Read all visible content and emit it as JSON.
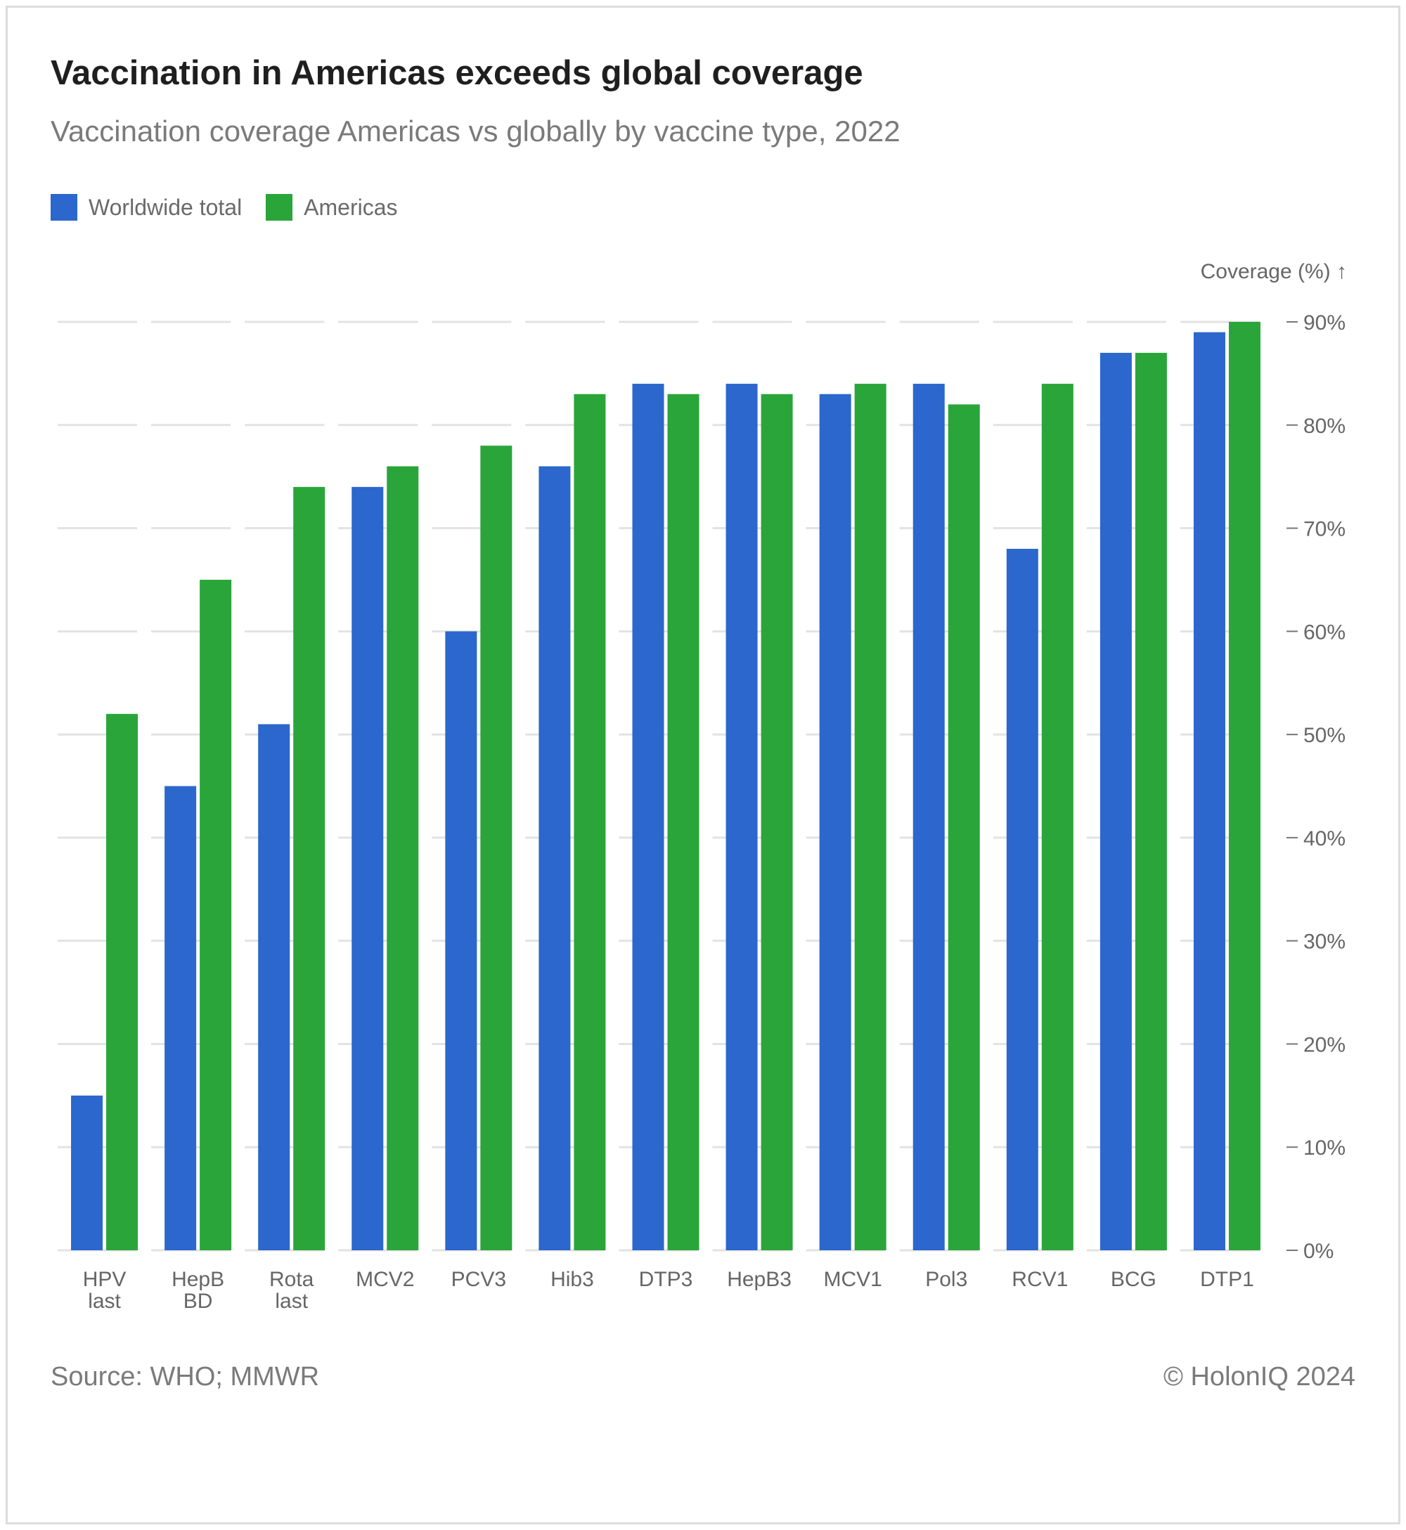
{
  "header": {
    "title": "Vaccination in Americas exceeds global coverage",
    "subtitle": "Vaccination coverage Americas vs globally by vaccine type, 2022"
  },
  "legend": [
    {
      "label": "Worldwide total",
      "color": "#2b67cc"
    },
    {
      "label": "Americas",
      "color": "#2aa53a"
    }
  ],
  "footer": {
    "source": "Source: WHO; MMWR",
    "copyright": "© HolonIQ 2024"
  },
  "chart_data": {
    "type": "bar",
    "title": "Vaccination in Americas exceeds global coverage",
    "subtitle": "Vaccination coverage Americas vs globally by vaccine type, 2022",
    "ylabel": "Coverage (%) ↑",
    "xlabel": "",
    "ylim": [
      0,
      90
    ],
    "yticks": [
      "0%",
      "10%",
      "20%",
      "30%",
      "40%",
      "50%",
      "60%",
      "70%",
      "80%",
      "90%"
    ],
    "y_axis_position": "right",
    "grid": true,
    "legend_position": "top-left",
    "categories": [
      [
        "HPV",
        "last"
      ],
      [
        "HepB",
        "BD"
      ],
      [
        "Rota",
        "last"
      ],
      [
        "MCV2"
      ],
      [
        "PCV3"
      ],
      [
        "Hib3"
      ],
      [
        "DTP3"
      ],
      [
        "HepB3"
      ],
      [
        "MCV1"
      ],
      [
        "Pol3"
      ],
      [
        "RCV1"
      ],
      [
        "BCG"
      ],
      [
        "DTP1"
      ]
    ],
    "series": [
      {
        "name": "Worldwide total",
        "color": "#2b67cc",
        "values": [
          15,
          45,
          51,
          74,
          60,
          76,
          84,
          84,
          83,
          84,
          68,
          87,
          89
        ]
      },
      {
        "name": "Americas",
        "color": "#2aa53a",
        "values": [
          52,
          65,
          74,
          76,
          78,
          83,
          83,
          83,
          84,
          82,
          84,
          87,
          90
        ]
      }
    ]
  }
}
